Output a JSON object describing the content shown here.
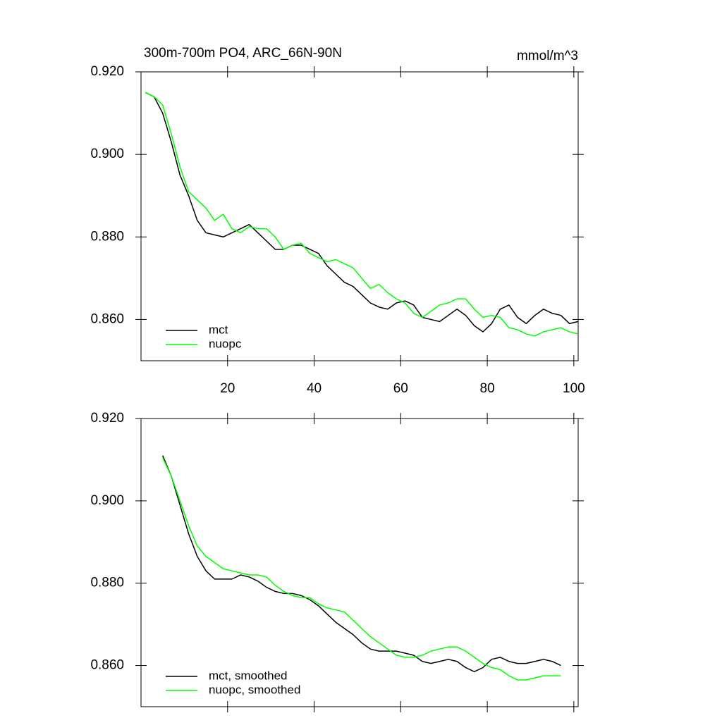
{
  "chart_data": [
    {
      "type": "line",
      "title": "300m-700m PO4, ARC_66N-90N",
      "units": "mmol/m^3",
      "x": [
        1,
        3,
        5,
        7,
        9,
        11,
        13,
        15,
        17,
        19,
        21,
        23,
        25,
        27,
        29,
        31,
        33,
        35,
        37,
        39,
        41,
        43,
        45,
        47,
        49,
        51,
        53,
        55,
        57,
        59,
        61,
        63,
        65,
        67,
        69,
        71,
        73,
        75,
        77,
        79,
        81,
        83,
        85,
        87,
        89,
        91,
        93,
        95,
        97,
        99,
        101
      ],
      "series": [
        {
          "name": "mct",
          "color": "#000000",
          "values": [
            0.915,
            0.914,
            0.91,
            0.903,
            0.895,
            0.89,
            0.884,
            0.881,
            0.8805,
            0.88,
            0.881,
            0.882,
            0.883,
            0.881,
            0.879,
            0.877,
            0.877,
            0.878,
            0.878,
            0.877,
            0.876,
            0.873,
            0.871,
            0.869,
            0.868,
            0.866,
            0.864,
            0.863,
            0.8625,
            0.864,
            0.8645,
            0.8635,
            0.8605,
            0.86,
            0.8595,
            0.861,
            0.8625,
            0.861,
            0.8585,
            0.857,
            0.859,
            0.8625,
            0.8635,
            0.8605,
            0.859,
            0.861,
            0.8625,
            0.8615,
            0.861,
            0.859,
            0.8595
          ]
        },
        {
          "name": "nuopc",
          "color": "#00ff00",
          "values": [
            0.915,
            0.914,
            0.912,
            0.905,
            0.897,
            0.891,
            0.889,
            0.887,
            0.884,
            0.8855,
            0.882,
            0.881,
            0.8825,
            0.882,
            0.882,
            0.88,
            0.877,
            0.878,
            0.8785,
            0.876,
            0.875,
            0.874,
            0.8745,
            0.8735,
            0.8725,
            0.87,
            0.8675,
            0.8685,
            0.8665,
            0.865,
            0.864,
            0.8615,
            0.8605,
            0.862,
            0.8635,
            0.864,
            0.865,
            0.865,
            0.8625,
            0.8605,
            0.861,
            0.8605,
            0.858,
            0.8575,
            0.8565,
            0.856,
            0.857,
            0.8575,
            0.858,
            0.857,
            0.8565
          ]
        }
      ],
      "xlim": [
        0,
        101
      ],
      "ylim": [
        0.85,
        0.92
      ],
      "xticks": [
        20,
        40,
        60,
        80,
        100
      ],
      "xtick_labels": true,
      "yticks": [
        {
          "value": 0.86,
          "label": "0.860"
        },
        {
          "value": 0.88,
          "label": "0.880"
        },
        {
          "value": 0.9,
          "label": "0.900"
        },
        {
          "value": 0.92,
          "label": "0.920"
        }
      ],
      "legend": "lower left"
    },
    {
      "type": "line",
      "x": [
        5,
        7,
        9,
        11,
        13,
        15,
        17,
        19,
        21,
        23,
        25,
        27,
        29,
        31,
        33,
        35,
        37,
        39,
        41,
        43,
        45,
        47,
        49,
        51,
        53,
        55,
        57,
        59,
        61,
        63,
        65,
        67,
        69,
        71,
        73,
        75,
        77,
        79,
        81,
        83,
        85,
        87,
        89,
        91,
        93,
        95,
        97
      ],
      "series": [
        {
          "name": "mct, smoothed",
          "color": "#000000",
          "values": [
            0.911,
            0.906,
            0.899,
            0.892,
            0.8865,
            0.883,
            0.881,
            0.881,
            0.881,
            0.882,
            0.8815,
            0.8805,
            0.879,
            0.878,
            0.8775,
            0.8775,
            0.877,
            0.876,
            0.8745,
            0.8725,
            0.8705,
            0.869,
            0.8675,
            0.8655,
            0.864,
            0.8635,
            0.8635,
            0.8635,
            0.863,
            0.8625,
            0.861,
            0.8605,
            0.861,
            0.8615,
            0.861,
            0.8595,
            0.8585,
            0.8595,
            0.8615,
            0.862,
            0.861,
            0.8605,
            0.8605,
            0.861,
            0.8615,
            0.861,
            0.86
          ]
        },
        {
          "name": "nuopc, smoothed",
          "color": "#00ff00",
          "values": [
            0.9105,
            0.906,
            0.9,
            0.894,
            0.889,
            0.8865,
            0.885,
            0.8835,
            0.883,
            0.8825,
            0.882,
            0.882,
            0.8815,
            0.8795,
            0.878,
            0.877,
            0.8765,
            0.8765,
            0.875,
            0.874,
            0.8735,
            0.873,
            0.871,
            0.869,
            0.867,
            0.8655,
            0.864,
            0.8625,
            0.862,
            0.862,
            0.8625,
            0.8635,
            0.864,
            0.8645,
            0.8645,
            0.8635,
            0.862,
            0.8605,
            0.8595,
            0.859,
            0.8575,
            0.8565,
            0.8565,
            0.857,
            0.8575,
            0.8575,
            0.8575
          ]
        }
      ],
      "xlim": [
        0,
        101
      ],
      "ylim": [
        0.85,
        0.92
      ],
      "xticks": [
        20,
        40,
        60,
        80,
        100
      ],
      "xtick_labels": false,
      "yticks": [
        {
          "value": 0.86,
          "label": "0.860"
        },
        {
          "value": 0.88,
          "label": "0.880"
        },
        {
          "value": 0.9,
          "label": "0.900"
        },
        {
          "value": 0.92,
          "label": "0.920"
        }
      ],
      "legend": "lower left"
    }
  ]
}
